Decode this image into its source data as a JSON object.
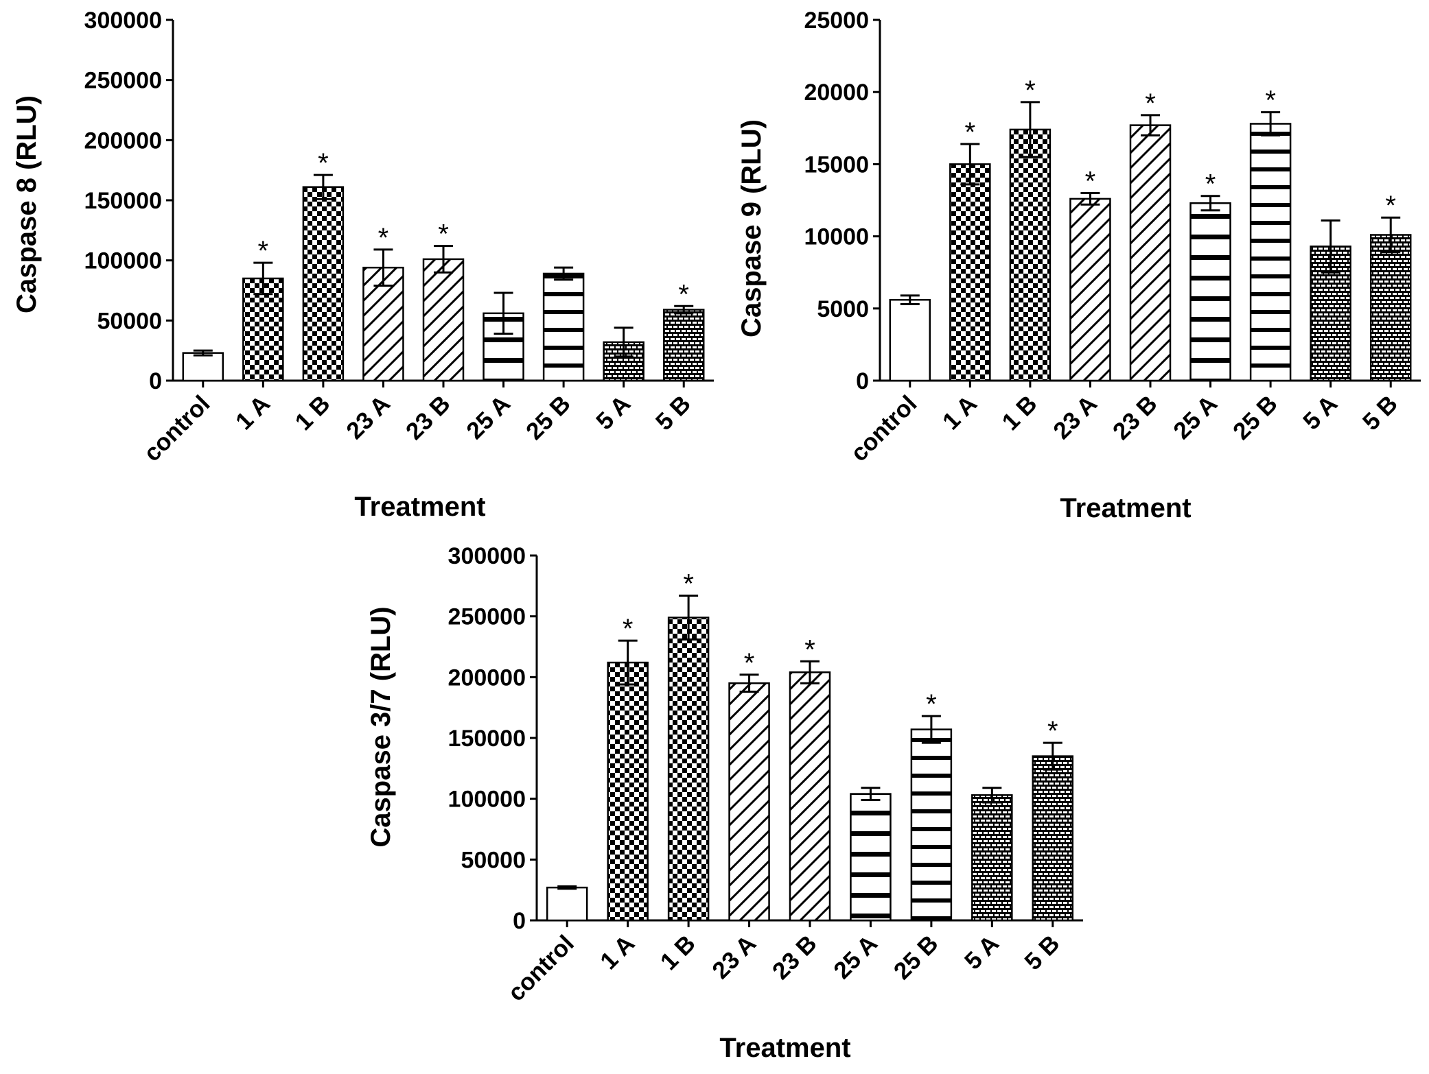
{
  "chart_data": [
    {
      "type": "bar",
      "ylabel": "Caspase 8 (RLU)",
      "xlabel": "Treatment",
      "categories": [
        "control",
        "1 A",
        "1 B",
        "23 A",
        "23 B",
        "25 A",
        "25 B",
        "5 A",
        "5 B"
      ],
      "patterns": [
        "none",
        "checker",
        "checker",
        "diagonal",
        "diagonal",
        "hline-wide",
        "hline",
        "brick",
        "brick"
      ],
      "values": [
        23000,
        85000,
        161000,
        94000,
        101000,
        56000,
        89000,
        32000,
        59000
      ],
      "errors": [
        2000,
        13000,
        10000,
        15000,
        11000,
        17000,
        5000,
        12000,
        3000
      ],
      "significant": [
        false,
        true,
        true,
        true,
        true,
        false,
        false,
        false,
        true
      ],
      "significance_symbol": "*",
      "ylim": [
        0,
        300000
      ],
      "yticks": [
        "0",
        "50000",
        "100000",
        "150000",
        "200000",
        "250000",
        "300000"
      ],
      "grid": false
    },
    {
      "type": "bar",
      "ylabel": "Caspase 9 (RLU)",
      "xlabel": "Treatment",
      "categories": [
        "control",
        "1 A",
        "1 B",
        "23 A",
        "23 B",
        "25 A",
        "25 B",
        "5 A",
        "5 B"
      ],
      "patterns": [
        "none",
        "checker",
        "checker",
        "diagonal",
        "diagonal",
        "hline-wide",
        "hline",
        "brick",
        "brick"
      ],
      "values": [
        5600,
        15000,
        17400,
        12600,
        17700,
        12300,
        17800,
        9300,
        10100
      ],
      "errors": [
        300,
        1400,
        1900,
        400,
        700,
        500,
        800,
        1800,
        1200
      ],
      "significant": [
        false,
        true,
        true,
        true,
        true,
        true,
        true,
        false,
        true
      ],
      "significance_symbol": "*",
      "ylim": [
        0,
        25000
      ],
      "yticks": [
        "0",
        "5000",
        "10000",
        "15000",
        "20000",
        "25000"
      ],
      "grid": false
    },
    {
      "type": "bar",
      "ylabel": "Caspase 3/7 (RLU)",
      "xlabel": "Treatment",
      "categories": [
        "control",
        "1 A",
        "1 B",
        "23 A",
        "23 B",
        "25 A",
        "25 B",
        "5 A",
        "5 B"
      ],
      "patterns": [
        "none",
        "checker",
        "checker",
        "diagonal",
        "diagonal",
        "hline-wide",
        "hline",
        "brick",
        "brick"
      ],
      "values": [
        27000,
        212000,
        249000,
        195000,
        204000,
        104000,
        157000,
        103000,
        135000
      ],
      "errors": [
        1000,
        18000,
        18000,
        7000,
        9000,
        5000,
        11000,
        6000,
        11000
      ],
      "significant": [
        false,
        true,
        true,
        true,
        true,
        false,
        true,
        false,
        true
      ],
      "significance_symbol": "*",
      "ylim": [
        0,
        300000
      ],
      "yticks": [
        "0",
        "50000",
        "100000",
        "150000",
        "200000",
        "250000",
        "300000"
      ],
      "grid": false
    }
  ]
}
